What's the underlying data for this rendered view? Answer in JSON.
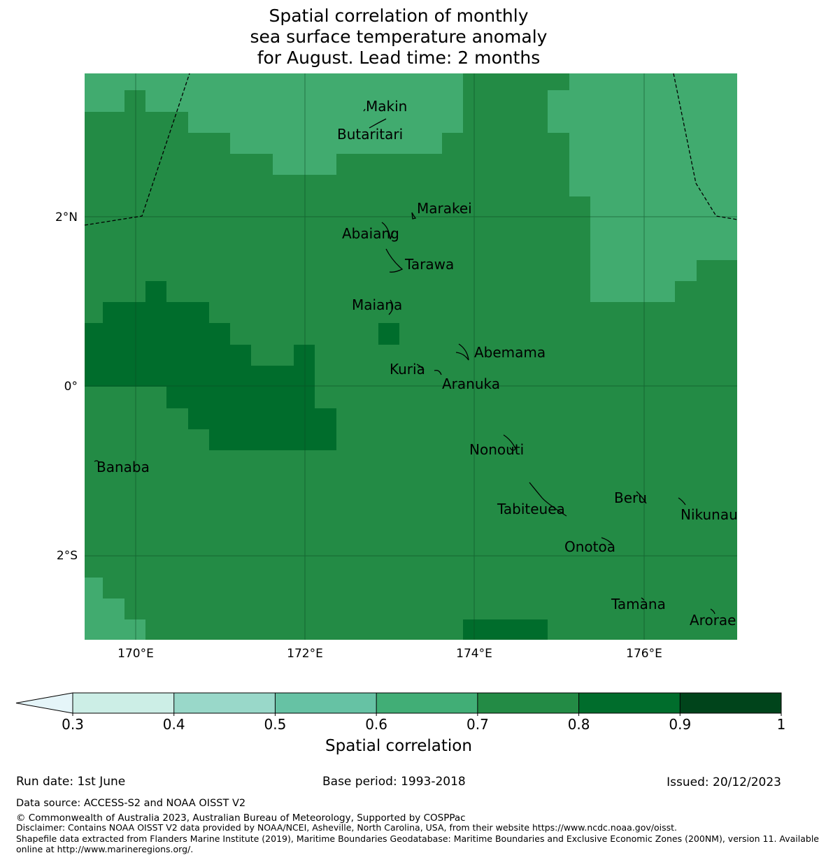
{
  "title": {
    "line1": "Spatial correlation of monthly",
    "line2": "sea surface temperature anomaly",
    "line3": "for August. Lead time: 2 months"
  },
  "map": {
    "lon_range": [
      169.4,
      177.1
    ],
    "lat_range": [
      -2.9,
      3.8
    ],
    "lon_ticks": [
      "170°E",
      "172°E",
      "174°E",
      "176°E"
    ],
    "lat_ticks": [
      "2°N",
      "0°",
      "2°S"
    ],
    "grid_cells_note_colors": {
      "0.6-0.7": "#41ab6f",
      "0.7-0.8": "#238b45",
      "0.8-0.9": "#006d2c"
    },
    "islands": [
      {
        "name": "Makin",
        "lon": 173.0,
        "lat": 3.35
      },
      {
        "name": "Butaritari",
        "lon": 172.8,
        "lat": 3.05
      },
      {
        "name": "Marakei",
        "lon": 173.3,
        "lat": 2.0
      },
      {
        "name": "Abaiang",
        "lon": 172.9,
        "lat": 1.8
      },
      {
        "name": "Tarawa",
        "lon": 173.05,
        "lat": 1.45
      },
      {
        "name": "Maiana",
        "lon": 173.0,
        "lat": 0.95
      },
      {
        "name": "Abemama",
        "lon": 173.85,
        "lat": 0.4
      },
      {
        "name": "Kuria",
        "lon": 173.4,
        "lat": 0.22
      },
      {
        "name": "Aranuka",
        "lon": 173.6,
        "lat": 0.15
      },
      {
        "name": "Nonouti",
        "lon": 174.4,
        "lat": -0.65
      },
      {
        "name": "Banaba",
        "lon": 169.5,
        "lat": -0.87
      },
      {
        "name": "Tabiteuea",
        "lon": 174.8,
        "lat": -1.3
      },
      {
        "name": "Beru",
        "lon": 175.98,
        "lat": -1.33
      },
      {
        "name": "Nikunau",
        "lon": 176.45,
        "lat": -1.38
      },
      {
        "name": "Onotoa",
        "lon": 175.55,
        "lat": -1.8
      },
      {
        "name": "Tamana",
        "lon": 175.98,
        "lat": -2.5
      },
      {
        "name": "Arorae",
        "lon": 176.82,
        "lat": -2.65
      }
    ]
  },
  "colorbar": {
    "ticks": [
      "0.3",
      "0.4",
      "0.5",
      "0.6",
      "0.7",
      "0.8",
      "0.9",
      "1"
    ],
    "colors": [
      "#cceee6",
      "#99d8c9",
      "#66c2a4",
      "#41ae76",
      "#238b45",
      "#006d2c",
      "#00441b"
    ],
    "under_color": "#e5f5f9",
    "label": "Spatial correlation"
  },
  "footer": {
    "run_date": "Run date: 1st June",
    "base_period": "Base period: 1993-2018",
    "issued": "Issued: 20/12/2023",
    "data_source": "Data source: ACCESS-S2 and NOAA OISST V2",
    "copyright": "© Commonwealth of Australia 2023, Australian Bureau of Meteorology, Supported by COSPPac",
    "disclaimer": "Disclaimer: Contains NOAA OISST V2 data provided by NOAA/NCEI, Asheville, North Carolina, USA, from their website https://www.ncdc.noaa.gov/oisst.",
    "shapefile1": "Shapefile data extracted from Flanders Marine Institute (2019), Maritime Boundaries Geodatabase: Maritime Boundaries and Exclusive Economic Zones (200NM), version 11. Available",
    "shapefile2": "online at http://www.marineregions.org/."
  }
}
